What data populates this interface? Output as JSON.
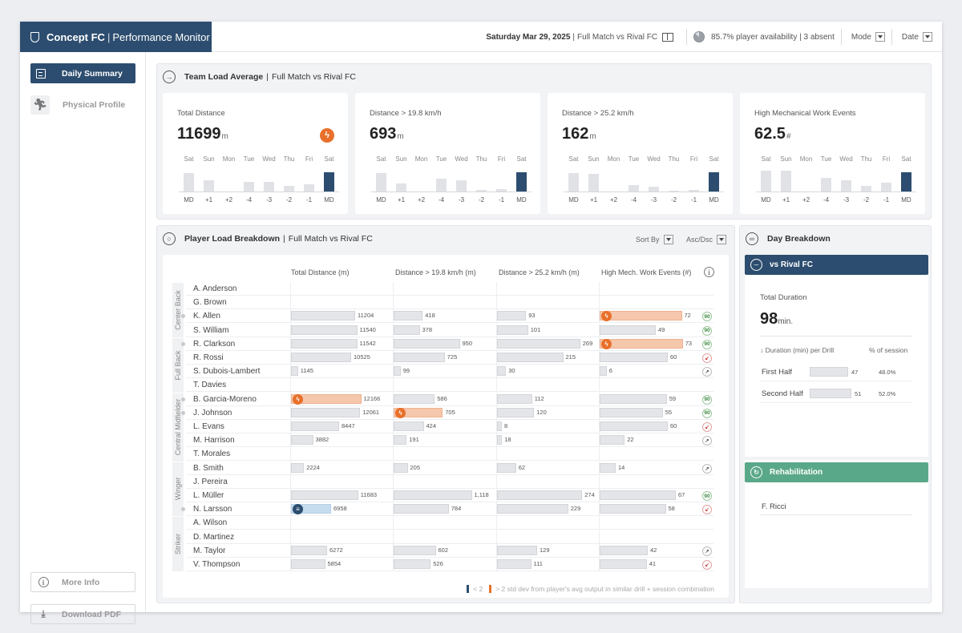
{
  "header": {
    "brand_bold": "Concept FC",
    "brand_sub": "Performance Monitor",
    "date": "Saturday Mar 29, 2025",
    "match": "Full Match vs Rival FC",
    "availability": "85.7% player availability | 3 absent",
    "mode_label": "Mode",
    "date_label": "Date"
  },
  "sidebar": {
    "items": [
      {
        "label": "Daily Summary",
        "icon": "summary-icon",
        "active": true
      },
      {
        "label": "Physical Profile",
        "icon": "runner-icon",
        "active": false
      }
    ],
    "more_info": "More Info",
    "download": "Download PDF"
  },
  "team_load": {
    "title": "Team Load Average",
    "subtitle": "Full Match vs Rival FC",
    "day_labels": [
      "Sat",
      "Sun",
      "Mon",
      "Tue",
      "Wed",
      "Thu",
      "Fri",
      "Sat"
    ],
    "rel_labels": [
      "MD",
      "+1",
      "+2",
      "-4",
      "-3",
      "-2",
      "-1",
      "MD"
    ],
    "cards": [
      {
        "title": "Total Distance",
        "value": "11699",
        "unit": "m",
        "flag": true,
        "bars": [
          0.68,
          0.42,
          0,
          0.36,
          0.34,
          0.2,
          0.27,
          0.71
        ]
      },
      {
        "title": "Distance > 19.8 km/h",
        "value": "693",
        "unit": "m",
        "flag": false,
        "bars": [
          0.68,
          0.29,
          0,
          0.46,
          0.42,
          0.05,
          0.1,
          0.71
        ]
      },
      {
        "title": "Distance > 25.2 km/h",
        "value": "162",
        "unit": "m",
        "flag": false,
        "bars": [
          0.68,
          0.64,
          0,
          0.24,
          0.19,
          0.03,
          0.05,
          0.71
        ]
      },
      {
        "title": "High Mechanical Work Events",
        "value": "62.5",
        "unit": "#",
        "flag": false,
        "bars": [
          0.76,
          0.76,
          0,
          0.49,
          0.42,
          0.2,
          0.32,
          0.71
        ]
      }
    ]
  },
  "player_load": {
    "title": "Player Load Breakdown",
    "subtitle": "Full Match vs Rival FC",
    "sort_label": "Sort By",
    "order_label": "Asc/Dsc",
    "columns": [
      "Total Distance (m)",
      "Distance > 19.8 km/h (m)",
      "Distance > 25.2 km/h (m)",
      "High Mech. Work Events (#)"
    ],
    "groups": [
      {
        "name": "Center Back",
        "rows": 4
      },
      {
        "name": "Full Back",
        "rows": 4
      },
      {
        "name": "Central Midfielder",
        "rows": 5
      },
      {
        "name": "Winger",
        "rows": 4
      },
      {
        "name": "Striker",
        "rows": 4
      }
    ],
    "rows": [
      {
        "name": "A. Anderson",
        "dot": false,
        "cells": [],
        "status": ""
      },
      {
        "name": "G. Brown",
        "dot": false,
        "cells": [],
        "status": ""
      },
      {
        "name": "K. Allen",
        "dot": true,
        "cells": [
          {
            "v": "11204",
            "f": 0.64
          },
          {
            "v": "418",
            "f": 0.29
          },
          {
            "v": "93",
            "f": 0.29
          },
          {
            "v": "72",
            "f": 0.82,
            "hl": "orange"
          }
        ],
        "status": "90"
      },
      {
        "name": "S. William",
        "dot": false,
        "cells": [
          {
            "v": "11540",
            "f": 0.66
          },
          {
            "v": "378",
            "f": 0.26
          },
          {
            "v": "101",
            "f": 0.31
          },
          {
            "v": "49",
            "f": 0.56
          }
        ],
        "status": "90"
      },
      {
        "name": "R. Clarkson",
        "dot": true,
        "cells": [
          {
            "v": "11542",
            "f": 0.66
          },
          {
            "v": "950",
            "f": 0.66
          },
          {
            "v": "269",
            "f": 0.83
          },
          {
            "v": "73",
            "f": 0.83,
            "hl": "orange"
          }
        ],
        "status": "90"
      },
      {
        "name": "R. Rossi",
        "dot": false,
        "cells": [
          {
            "v": "10525",
            "f": 0.6
          },
          {
            "v": "725",
            "f": 0.51
          },
          {
            "v": "215",
            "f": 0.66
          },
          {
            "v": "60",
            "f": 0.68
          }
        ],
        "status": "down"
      },
      {
        "name": "S. Dubois-Lambert",
        "dot": false,
        "cells": [
          {
            "v": "1145",
            "f": 0.07
          },
          {
            "v": "99",
            "f": 0.07
          },
          {
            "v": "30",
            "f": 0.09
          },
          {
            "v": "6",
            "f": 0.07
          }
        ],
        "status": "up"
      },
      {
        "name": "T. Davies",
        "dot": false,
        "cells": [],
        "status": ""
      },
      {
        "name": "B. Garcia-Moreno",
        "dot": true,
        "cells": [
          {
            "v": "12166",
            "f": 0.7,
            "hl": "orange"
          },
          {
            "v": "586",
            "f": 0.41
          },
          {
            "v": "112",
            "f": 0.35
          },
          {
            "v": "59",
            "f": 0.67
          }
        ],
        "status": "90"
      },
      {
        "name": "J. Johnson",
        "dot": true,
        "cells": [
          {
            "v": "12061",
            "f": 0.69
          },
          {
            "v": "705",
            "f": 0.49,
            "hl": "orange"
          },
          {
            "v": "120",
            "f": 0.37
          },
          {
            "v": "55",
            "f": 0.63
          }
        ],
        "status": "90"
      },
      {
        "name": "L. Evans",
        "dot": false,
        "cells": [
          {
            "v": "8447",
            "f": 0.48
          },
          {
            "v": "424",
            "f": 0.3
          },
          {
            "v": "8",
            "f": 0.02
          },
          {
            "v": "60",
            "f": 0.68
          }
        ],
        "status": "down"
      },
      {
        "name": "M. Harrison",
        "dot": false,
        "cells": [
          {
            "v": "3882",
            "f": 0.22
          },
          {
            "v": "191",
            "f": 0.13
          },
          {
            "v": "18",
            "f": 0.05
          },
          {
            "v": "22",
            "f": 0.25
          }
        ],
        "status": "up"
      },
      {
        "name": "T. Morales",
        "dot": false,
        "cells": [],
        "status": ""
      },
      {
        "name": "B. Smith",
        "dot": false,
        "cells": [
          {
            "v": "2224",
            "f": 0.13
          },
          {
            "v": "205",
            "f": 0.14
          },
          {
            "v": "62",
            "f": 0.19
          },
          {
            "v": "14",
            "f": 0.16
          }
        ],
        "status": "up"
      },
      {
        "name": "J. Pereira",
        "dot": false,
        "cells": [],
        "status": ""
      },
      {
        "name": "L. Müller",
        "dot": false,
        "cells": [
          {
            "v": "11683",
            "f": 0.67
          },
          {
            "v": "1,118",
            "f": 0.78
          },
          {
            "v": "274",
            "f": 0.85
          },
          {
            "v": "67",
            "f": 0.76
          }
        ],
        "status": "90"
      },
      {
        "name": "N. Larsson",
        "dot": true,
        "cells": [
          {
            "v": "6958",
            "f": 0.4,
            "hl": "blue"
          },
          {
            "v": "784",
            "f": 0.55
          },
          {
            "v": "229",
            "f": 0.71
          },
          {
            "v": "58",
            "f": 0.66
          }
        ],
        "status": "down"
      },
      {
        "name": "A. Wilson",
        "dot": false,
        "cells": [],
        "status": ""
      },
      {
        "name": "D. Martinez",
        "dot": false,
        "cells": [],
        "status": ""
      },
      {
        "name": "M. Taylor",
        "dot": false,
        "cells": [
          {
            "v": "6272",
            "f": 0.36
          },
          {
            "v": "602",
            "f": 0.42
          },
          {
            "v": "129",
            "f": 0.4
          },
          {
            "v": "42",
            "f": 0.48
          }
        ],
        "status": "up"
      },
      {
        "name": "V. Thompson",
        "dot": false,
        "cells": [
          {
            "v": "5854",
            "f": 0.34
          },
          {
            "v": "526",
            "f": 0.37
          },
          {
            "v": "111",
            "f": 0.34
          },
          {
            "v": "41",
            "f": 0.47
          }
        ],
        "status": "down"
      }
    ],
    "legend_low": "< 2",
    "legend_high": "> 2 std dev from player's avg output in similar drill + session combination"
  },
  "day_breakdown": {
    "title": "Day Breakdown",
    "match_label": "vs Rival FC",
    "duration_label": "Total Duration",
    "duration_value": "98",
    "duration_unit": "min.",
    "col_drill": "↓ Duration (min) per Drill",
    "col_pct": "% of session",
    "drills": [
      {
        "name": "First Half",
        "minutes": "47",
        "f": 0.48,
        "pct": "48.0%"
      },
      {
        "name": "Second Half",
        "minutes": "51",
        "f": 0.52,
        "pct": "52.0%"
      }
    ],
    "rehab_label": "Rehabilitation",
    "rehab_players": [
      "F. Ricci"
    ]
  },
  "colors": {
    "navy": "#2c4d6f",
    "orange": "#e8702a",
    "green": "#5aa88a",
    "blue": "#c6dcef"
  }
}
